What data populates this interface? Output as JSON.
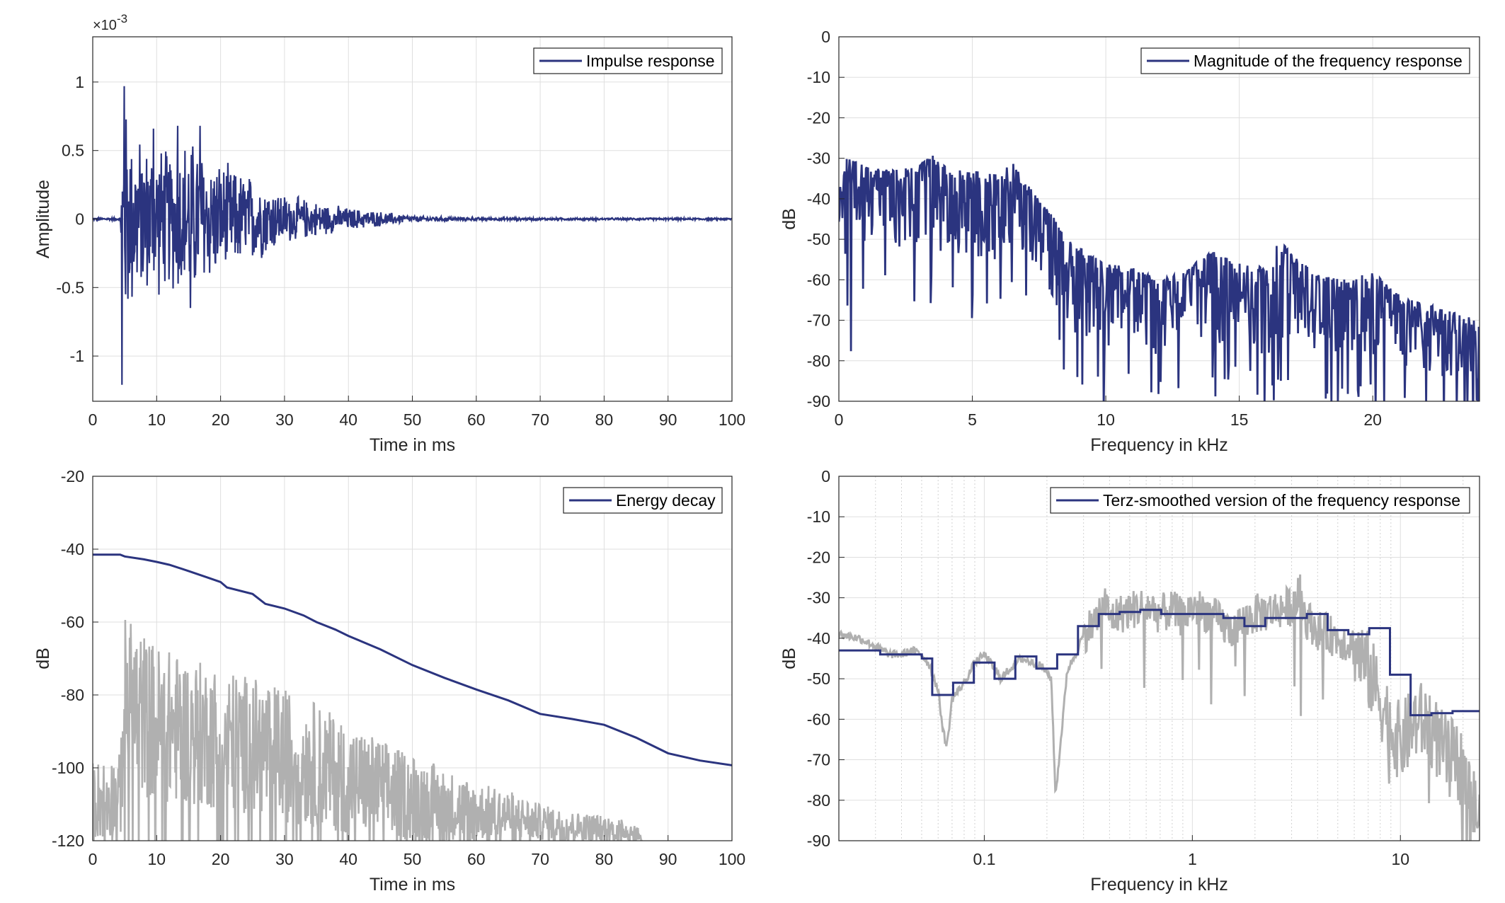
{
  "figure": {
    "background": "#ffffff",
    "series_color": "#2b347f",
    "raw_color": "#b0b0b0",
    "grid_color": "#dfdfdf"
  },
  "chart_data": [
    {
      "id": "impulse",
      "type": "line",
      "title": "",
      "xlabel": "Time in ms",
      "ylabel": "Amplitude",
      "y_exponent": "×10-3",
      "xlim": [
        0,
        100
      ],
      "ylim": [
        -1.33,
        1.33
      ],
      "xticks": [
        0,
        10,
        20,
        30,
        40,
        50,
        60,
        70,
        80,
        90,
        100
      ],
      "yticks": [
        -1,
        -0.5,
        0,
        0.5,
        1
      ],
      "ytick_labels": [
        "-1",
        "-0.5",
        "0",
        "0.5",
        "1"
      ],
      "grid": true,
      "legend_position": "top-right",
      "series": [
        {
          "name": "Impulse response",
          "color": "#2b347f",
          "envelope": {
            "x": [
              0,
              4.3,
              4.8,
              6,
              8,
              10,
              12,
              15,
              18,
              22,
              26,
              30,
              35,
              40,
              45,
              50,
              60,
              70,
              80,
              100
            ],
            "y": [
              0.01,
              0.01,
              0.97,
              0.75,
              0.6,
              0.62,
              0.55,
              0.68,
              0.52,
              0.4,
              0.33,
              0.2,
              0.14,
              0.09,
              0.06,
              0.025,
              0.012,
              0.01,
              0.008,
              0.008
            ]
          },
          "peaks": [
            {
              "x": 4.9,
              "y": 0.97
            },
            {
              "x": 4.6,
              "y": -1.21
            },
            {
              "x": 16.8,
              "y": 0.68
            },
            {
              "x": 13.3,
              "y": 0.68
            },
            {
              "x": 9.5,
              "y": 0.66
            },
            {
              "x": 15.3,
              "y": -0.65
            }
          ]
        }
      ]
    },
    {
      "id": "magnitude",
      "type": "line",
      "title": "",
      "xlabel": "Frequency in kHz",
      "ylabel": "dB",
      "xlim": [
        0,
        24
      ],
      "ylim": [
        -90,
        0
      ],
      "xticks": [
        0,
        5,
        10,
        15,
        20
      ],
      "yticks": [
        0,
        -10,
        -20,
        -30,
        -40,
        -50,
        -60,
        -70,
        -80,
        -90
      ],
      "grid": true,
      "legend_position": "top-right",
      "series": [
        {
          "name": "Magnitude of the frequency response",
          "color": "#2b347f",
          "upper": {
            "x": [
              0,
              0.3,
              1,
              2,
              3,
              3.5,
              4,
              5,
              6,
              6.5,
              7,
              7.5,
              8,
              8.5,
              9,
              10,
              11,
              12,
              13,
              13.5,
              14,
              15,
              16,
              16.5,
              17,
              18,
              19,
              20,
              20.5,
              21,
              22,
              23,
              24
            ],
            "y": [
              -38,
              -30,
              -32,
              -33,
              -32,
              -29,
              -32,
              -33,
              -34,
              -31,
              -36,
              -40,
              -44,
              -50,
              -52,
              -56,
              -57,
              -60,
              -58,
              -55,
              -53,
              -56,
              -57,
              -50,
              -54,
              -59,
              -60,
              -58,
              -61,
              -64,
              -66,
              -68,
              -70
            ]
          },
          "lower": {
            "x": [
              0,
              0.3,
              1,
              2,
              3,
              4,
              5,
              6,
              6.5,
              7,
              7.5,
              8,
              9,
              10,
              11,
              12,
              13,
              14,
              15,
              16,
              17,
              18,
              19,
              20,
              21,
              22,
              23,
              24
            ],
            "y": [
              -62,
              -78,
              -55,
              -58,
              -58,
              -60,
              -62,
              -60,
              -55,
              -60,
              -62,
              -70,
              -80,
              -85,
              -80,
              -85,
              -78,
              -82,
              -80,
              -86,
              -80,
              -82,
              -84,
              -86,
              -86,
              -88,
              -88,
              -90
            ]
          }
        }
      ]
    },
    {
      "id": "energy",
      "type": "line",
      "title": "",
      "xlabel": "Time in ms",
      "ylabel": "dB",
      "xlim": [
        0,
        100
      ],
      "ylim": [
        -120,
        -20
      ],
      "xticks": [
        0,
        10,
        20,
        30,
        40,
        50,
        60,
        70,
        80,
        90,
        100
      ],
      "yticks": [
        -20,
        -40,
        -60,
        -80,
        -100,
        -120
      ],
      "grid": true,
      "legend_position": "top-right",
      "series": [
        {
          "name": "Energy decay",
          "color": "#2b347f",
          "x": [
            0,
            4.3,
            5,
            8,
            10,
            12,
            15,
            18,
            20,
            21,
            25,
            27,
            30,
            33,
            35,
            38,
            40,
            45,
            50,
            55,
            60,
            65,
            70,
            75,
            80,
            85,
            90,
            95,
            100
          ],
          "y": [
            -41.5,
            -41.5,
            -42,
            -42.8,
            -43.5,
            -44.3,
            -46,
            -47.8,
            -49,
            -50.5,
            -52.3,
            -55,
            -56.3,
            -58.2,
            -60,
            -62.1,
            -63.8,
            -67.5,
            -71.8,
            -75.3,
            -78.5,
            -81.5,
            -85.2,
            -86.6,
            -88.2,
            -91.7,
            -96,
            -98,
            -99.3
          ]
        },
        {
          "name": "",
          "color": "#b0b0b0",
          "upper": {
            "x": [
              0,
              4.3,
              5,
              10,
              15,
              20,
              25,
              30,
              35,
              40,
              45,
              50,
              55,
              60,
              65,
              70,
              75,
              80,
              85,
              86
            ],
            "y": [
              -98,
              -96,
              -58,
              -66,
              -70,
              -72,
              -75,
              -78,
              -82,
              -88,
              -92,
              -96,
              -100,
              -104,
              -106,
              -110,
              -112,
              -113,
              -115,
              -120
            ]
          },
          "lower": {
            "x": [
              0,
              4.3,
              5,
              10,
              15,
              20,
              25,
              30,
              40,
              50,
              60,
              70,
              80,
              86
            ],
            "y": [
              -120,
              -120,
              -105,
              -110,
              -110,
              -112,
              -113,
              -115,
              -118,
              -120,
              -120,
              -120,
              -120,
              -120
            ]
          }
        }
      ]
    },
    {
      "id": "terz",
      "type": "line",
      "title": "",
      "xlabel": "Frequency in kHz",
      "ylabel": "dB",
      "xscale": "log",
      "xlim": [
        0.02,
        24
      ],
      "ylim": [
        -90,
        0
      ],
      "xticks": [
        0.1,
        1,
        10
      ],
      "xtick_labels": [
        "0.1",
        "1",
        "10"
      ],
      "yticks": [
        0,
        -10,
        -20,
        -30,
        -40,
        -50,
        -60,
        -70,
        -80,
        -90
      ],
      "grid": true,
      "legend_position": "top-right",
      "series": [
        {
          "name": "Terz-smoothed version of the frequency response",
          "color": "#2b347f",
          "steps": {
            "edges": [
              0.02,
              0.0316,
              0.0398,
              0.0501,
              0.0562,
              0.0708,
              0.0891,
              0.112,
              0.141,
              0.178,
              0.224,
              0.282,
              0.355,
              0.447,
              0.562,
              0.708,
              0.891,
              1.12,
              1.41,
              1.78,
              2.24,
              2.82,
              3.55,
              4.47,
              5.62,
              7.08,
              8.91,
              11.2,
              14.1,
              17.8,
              24
            ],
            "values": [
              -43,
              -44,
              -44,
              -45,
              -54,
              -51,
              -46,
              -50,
              -44.5,
              -47.5,
              -44,
              -37,
              -34,
              -33.5,
              -33,
              -34,
              -34,
              -34,
              -35,
              -37,
              -35,
              -35,
              -34,
              -38,
              -39,
              -37.5,
              -49,
              -59,
              -58.5,
              -58,
              -66.5
            ]
          }
        },
        {
          "name": "",
          "color": "#b0b0b0",
          "x": [
            0.02,
            0.025,
            0.03,
            0.035,
            0.04,
            0.045,
            0.05,
            0.055,
            0.06,
            0.063,
            0.066,
            0.07,
            0.08,
            0.09,
            0.1,
            0.11,
            0.12,
            0.13,
            0.15,
            0.17,
            0.19,
            0.21,
            0.215,
            0.22,
            0.25,
            0.28,
            0.3,
            0.35,
            0.38,
            0.4,
            0.45,
            0.5,
            0.6,
            0.7,
            0.8,
            0.9,
            1,
            1.2,
            1.5,
            2,
            2.5,
            3,
            3.3,
            3.5,
            4,
            5,
            6,
            7,
            8,
            9,
            10,
            12,
            14,
            16,
            18,
            20,
            22,
            24
          ],
          "y": [
            -39,
            -40,
            -42,
            -44,
            -44,
            -43,
            -44,
            -47,
            -53,
            -62,
            -67,
            -55,
            -51,
            -46,
            -44,
            -47,
            -50,
            -48,
            -45,
            -46,
            -47,
            -50,
            -65,
            -79,
            -48,
            -43,
            -39,
            -35,
            -31,
            -35,
            -34,
            -33,
            -32,
            -34,
            -33,
            -35,
            -32,
            -34,
            -38,
            -34,
            -33,
            -32,
            -29,
            -35,
            -38,
            -40,
            -42,
            -48,
            -55,
            -62,
            -66,
            -60,
            -62,
            -68,
            -70,
            -72,
            -80,
            -85
          ]
        }
      ]
    }
  ]
}
